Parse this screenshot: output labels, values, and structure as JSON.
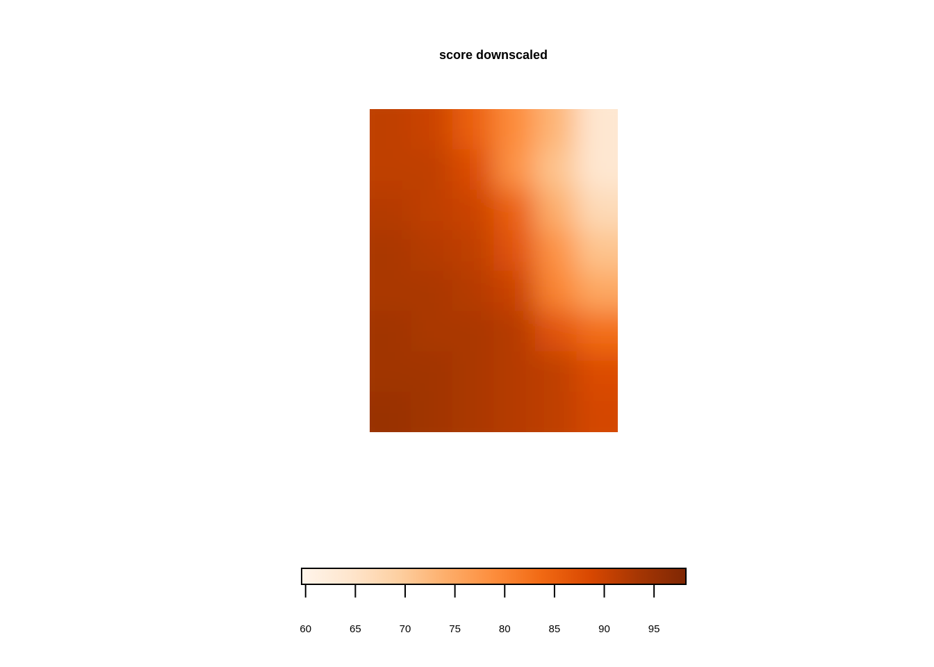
{
  "chart_data": {
    "type": "heatmap",
    "title": "score downscaled",
    "xlabel": "",
    "ylabel": "",
    "color_scale": {
      "palette": "Oranges",
      "min": 59.6,
      "max": 98.2,
      "colors": [
        "#fff5eb",
        "#fee6ce",
        "#fdd0a2",
        "#fdae6b",
        "#fd8d3c",
        "#f16913",
        "#d94801",
        "#a63603",
        "#7f2704"
      ],
      "ticks": [
        60,
        65,
        70,
        75,
        80,
        85,
        90,
        95
      ],
      "tick_labels": [
        "60",
        "65",
        "70",
        "75",
        "80",
        "85",
        "90",
        "95"
      ]
    },
    "grid": {
      "rows": 8,
      "cols": 6,
      "values": [
        [
          91,
          90,
          85,
          79,
          73,
          64
        ],
        [
          91,
          91,
          88,
          78,
          71,
          64
        ],
        [
          92,
          91,
          90,
          85,
          74,
          67
        ],
        [
          93,
          92,
          91,
          87,
          78,
          71
        ],
        [
          93,
          93,
          92,
          90,
          80,
          75
        ],
        [
          94,
          93,
          93,
          92,
          87,
          83
        ],
        [
          94,
          94,
          93,
          92,
          91,
          88
        ],
        [
          95,
          94,
          93,
          92,
          91,
          89
        ]
      ]
    }
  }
}
